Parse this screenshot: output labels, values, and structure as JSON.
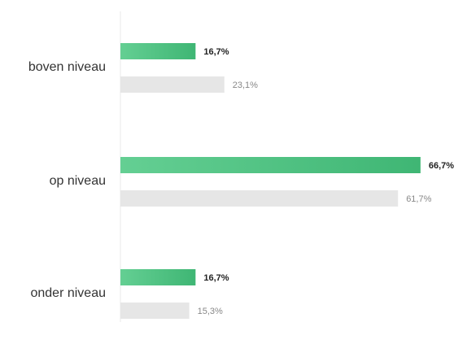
{
  "chart_data": {
    "type": "bar",
    "orientation": "horizontal",
    "categories": [
      "boven niveau",
      "op niveau",
      "onder niveau"
    ],
    "series": [
      {
        "color": "#4cc283",
        "values": [
          16.7,
          66.7,
          16.7
        ],
        "value_labels": [
          "16,7%",
          "66,7%",
          "16,7%"
        ]
      },
      {
        "color": "#e6e6e6",
        "values": [
          23.1,
          61.7,
          15.3
        ],
        "value_labels": [
          "23,1%",
          "61,7%",
          "15,3%"
        ]
      }
    ],
    "xlim": [
      0,
      100
    ]
  }
}
